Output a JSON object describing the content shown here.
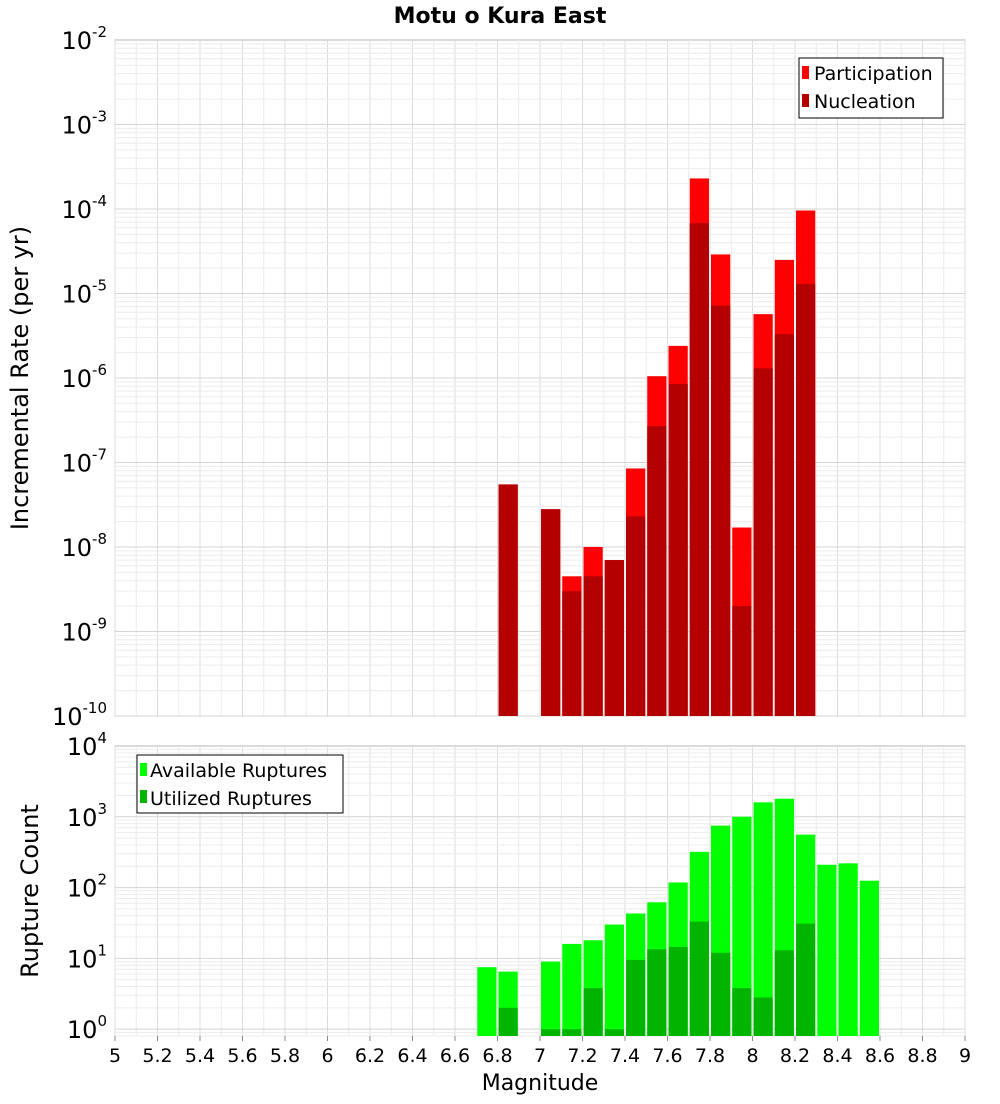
{
  "chart_data": [
    {
      "type": "bar",
      "title": "Motu o Kura East",
      "ylabel": "Incremental Rate (per yr)",
      "xlabel": "",
      "yscale": "log",
      "ylim": [
        1e-10,
        0.01
      ],
      "xlim": [
        5,
        9
      ],
      "bar_width": 0.1,
      "yticks": [
        {
          "base": "10",
          "exp": "-10"
        },
        {
          "base": "10",
          "exp": "-9"
        },
        {
          "base": "10",
          "exp": "-8"
        },
        {
          "base": "10",
          "exp": "-7"
        },
        {
          "base": "10",
          "exp": "-6"
        },
        {
          "base": "10",
          "exp": "-5"
        },
        {
          "base": "10",
          "exp": "-4"
        },
        {
          "base": "10",
          "exp": "-3"
        },
        {
          "base": "10",
          "exp": "-2"
        }
      ],
      "legend_position": "top-right",
      "grid": true,
      "x": [
        6.85,
        7.05,
        7.15,
        7.25,
        7.35,
        7.45,
        7.55,
        7.65,
        7.75,
        7.85,
        7.95,
        8.05,
        8.15,
        8.25
      ],
      "series": [
        {
          "name": "Participation",
          "color": "#ff0000",
          "values": [
            5.5e-08,
            2.8e-08,
            4.5e-09,
            1e-08,
            7e-09,
            8.5e-08,
            1.05e-06,
            2.4e-06,
            0.00023,
            2.9e-05,
            1.7e-08,
            5.7e-06,
            2.5e-05,
            9.6e-05
          ]
        },
        {
          "name": "Nucleation",
          "color": "#b40000",
          "values": [
            5.5e-08,
            2.8e-08,
            3e-09,
            4.5e-09,
            7e-09,
            2.3e-08,
            2.7e-07,
            8.5e-07,
            6.8e-05,
            7.2e-06,
            2e-09,
            1.3e-06,
            3.3e-06,
            1.3e-05
          ]
        }
      ]
    },
    {
      "type": "bar",
      "title": "",
      "ylabel": "Rupture Count",
      "xlabel": "Magnitude",
      "yscale": "log",
      "ylim": [
        0.8,
        10000
      ],
      "xlim": [
        5,
        9
      ],
      "bar_width": 0.1,
      "yticks": [
        {
          "base": "10",
          "exp": "0"
        },
        {
          "base": "10",
          "exp": "1"
        },
        {
          "base": "10",
          "exp": "2"
        },
        {
          "base": "10",
          "exp": "3"
        },
        {
          "base": "10",
          "exp": "4"
        }
      ],
      "xticks": [
        "5",
        "5.2",
        "5.4",
        "5.6",
        "5.8",
        "6",
        "6.2",
        "6.4",
        "6.6",
        "6.8",
        "7",
        "7.2",
        "7.4",
        "7.6",
        "7.8",
        "8",
        "8.2",
        "8.4",
        "8.6",
        "8.8",
        "9"
      ],
      "legend_position": "top-left",
      "grid": true,
      "x": [
        6.75,
        6.85,
        7.05,
        7.15,
        7.25,
        7.35,
        7.45,
        7.55,
        7.65,
        7.75,
        7.85,
        7.95,
        8.05,
        8.15,
        8.25,
        8.35,
        8.45,
        8.55
      ],
      "series": [
        {
          "name": "Available Ruptures",
          "color": "#00ff00",
          "values": [
            7.5,
            6.5,
            9,
            16,
            18,
            30,
            43,
            62,
            118,
            320,
            750,
            1000,
            1600,
            1800,
            560,
            210,
            220,
            125
          ]
        },
        {
          "name": "Utilized Ruptures",
          "color": "#00b400",
          "values": [
            0,
            2,
            1,
            1,
            3.8,
            1,
            9.5,
            13.5,
            14.5,
            33,
            12,
            3.8,
            2.8,
            13,
            31,
            0,
            0,
            0
          ]
        }
      ]
    }
  ]
}
